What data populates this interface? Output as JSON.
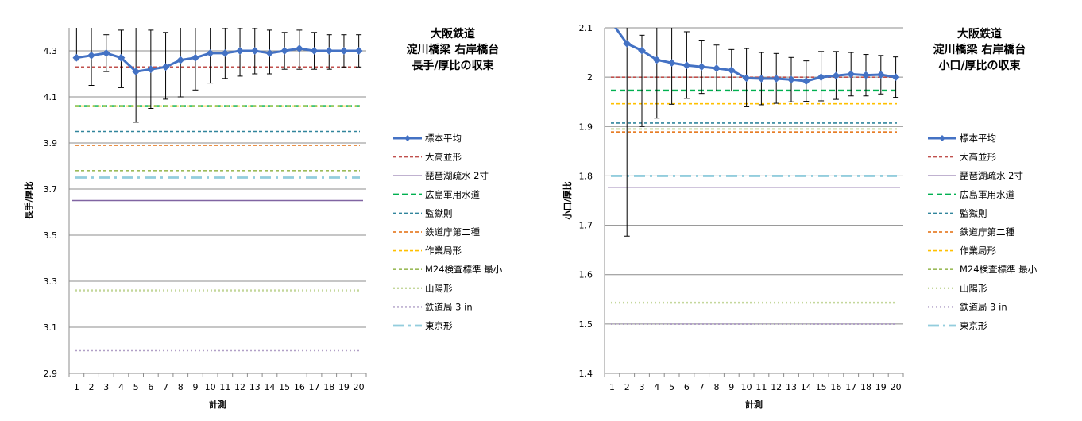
{
  "chart_data": [
    {
      "type": "line",
      "title": [
        "大阪鉄道",
        "淀川橋梁 右岸橋台",
        "長手/厚比の収束"
      ],
      "xlabel": "計測",
      "ylabel": "長手/厚比",
      "x": [
        1,
        2,
        3,
        4,
        5,
        6,
        7,
        8,
        9,
        10,
        11,
        12,
        13,
        14,
        15,
        16,
        17,
        18,
        19,
        20
      ],
      "ylim": [
        2.9,
        4.4
      ],
      "yticks": [
        2.9,
        3.1,
        3.3,
        3.5,
        3.7,
        3.9,
        4.1,
        4.3
      ],
      "ytick_labels": [
        "2.9",
        "3.1",
        "3.3",
        "3.5",
        "3.7",
        "3.9",
        "4.1",
        "4.3"
      ],
      "grid": true,
      "legend": "right",
      "sample": {
        "name": "標本平均",
        "color": "#4472C4",
        "values": [
          4.27,
          4.28,
          4.29,
          4.27,
          4.21,
          4.22,
          4.23,
          4.26,
          4.27,
          4.29,
          4.29,
          4.3,
          4.3,
          4.29,
          4.3,
          4.31,
          4.3,
          4.3,
          4.3,
          4.3
        ],
        "err_hi": [
          4.44,
          4.41,
          4.37,
          4.39,
          4.43,
          4.39,
          4.38,
          4.42,
          4.41,
          4.42,
          4.4,
          4.4,
          4.4,
          4.39,
          4.38,
          4.39,
          4.38,
          4.37,
          4.37,
          4.37
        ],
        "err_lo": [
          4.26,
          4.15,
          4.21,
          4.14,
          3.99,
          4.05,
          4.09,
          4.1,
          4.13,
          4.16,
          4.18,
          4.19,
          4.2,
          4.2,
          4.22,
          4.22,
          4.22,
          4.22,
          4.23,
          4.23
        ]
      },
      "references": [
        {
          "name": "大高並形",
          "value": 4.23,
          "color": "#C0504D",
          "style": "dash"
        },
        {
          "name": "琵琶湖疏水 2寸",
          "value": 3.65,
          "color": "#8064A2",
          "style": "solid"
        },
        {
          "name": "広島軍用水道",
          "value": 4.06,
          "color": "#00B050",
          "style": "dash-long"
        },
        {
          "name": "監獄則",
          "value": 3.95,
          "color": "#31859C",
          "style": "dash"
        },
        {
          "name": "鉄道庁第二種",
          "value": 3.89,
          "color": "#E46C0A",
          "style": "dash"
        },
        {
          "name": "作業局形",
          "value": 4.06,
          "color": "#FFC000",
          "style": "dash"
        },
        {
          "name": "M24検査標準 最小",
          "value": 3.78,
          "color": "#9BBB59",
          "style": "dash"
        },
        {
          "name": "山陽形",
          "value": 3.26,
          "color": "#C4D79B",
          "style": "dot"
        },
        {
          "name": "鉄道局 3 in",
          "value": 3.0,
          "color": "#B1A0C7",
          "style": "dot"
        },
        {
          "name": "東京形",
          "value": 3.75,
          "color": "#93CDDD",
          "style": "dashdot"
        }
      ]
    },
    {
      "type": "line",
      "title": [
        "大阪鉄道",
        "淀川橋梁 右岸橋台",
        "小口/厚比の収束"
      ],
      "xlabel": "計測",
      "ylabel": "小口/厚比",
      "x": [
        1,
        2,
        3,
        4,
        5,
        6,
        7,
        8,
        9,
        10,
        11,
        12,
        13,
        14,
        15,
        16,
        17,
        18,
        19,
        20
      ],
      "ylim": [
        1.4,
        2.1
      ],
      "yticks": [
        1.4,
        1.5,
        1.6,
        1.7,
        1.8,
        1.9,
        2.0,
        2.1
      ],
      "ytick_labels": [
        "1.4",
        "1.5",
        "1.6",
        "1.7",
        "1.8",
        "1.9",
        "2",
        "2.1"
      ],
      "grid": true,
      "legend": "right",
      "sample": {
        "name": "標本平均",
        "color": "#4472C4",
        "values": [
          2.11,
          2.068,
          2.054,
          2.035,
          2.029,
          2.024,
          2.021,
          2.018,
          2.014,
          1.998,
          1.997,
          1.997,
          1.995,
          1.992,
          2.0,
          2.003,
          2.006,
          2.004,
          2.005,
          2.0
        ],
        "err_hi": [
          2.11,
          2.11,
          2.085,
          2.11,
          2.11,
          2.092,
          2.075,
          2.065,
          2.056,
          2.058,
          2.05,
          2.048,
          2.04,
          2.033,
          2.052,
          2.052,
          2.05,
          2.046,
          2.044,
          2.041
        ],
        "err_lo": [
          2.11,
          1.678,
          1.9,
          1.917,
          1.945,
          1.957,
          1.967,
          1.972,
          1.972,
          1.94,
          1.944,
          1.947,
          1.95,
          1.951,
          1.952,
          1.955,
          1.962,
          1.962,
          1.966,
          1.959
        ]
      },
      "references": [
        {
          "name": "大高並形",
          "value": 2.0,
          "color": "#C0504D",
          "style": "dash"
        },
        {
          "name": "琵琶湖疏水 2寸",
          "value": 1.777,
          "color": "#8064A2",
          "style": "solid"
        },
        {
          "name": "広島軍用水道",
          "value": 1.973,
          "color": "#00B050",
          "style": "dash-long"
        },
        {
          "name": "監獄則",
          "value": 1.907,
          "color": "#31859C",
          "style": "dash"
        },
        {
          "name": "鉄道庁第二種",
          "value": 1.889,
          "color": "#E46C0A",
          "style": "dash"
        },
        {
          "name": "作業局形",
          "value": 1.946,
          "color": "#FFC000",
          "style": "dash"
        },
        {
          "name": "M24検査標準 最小",
          "value": 1.895,
          "color": "#9BBB59",
          "style": "dash"
        },
        {
          "name": "山陽形",
          "value": 1.543,
          "color": "#C4D79B",
          "style": "dot"
        },
        {
          "name": "鉄道局 3 in",
          "value": 1.5,
          "color": "#B1A0C7",
          "style": "dot"
        },
        {
          "name": "東京形",
          "value": 1.8,
          "color": "#93CDDD",
          "style": "dashdot"
        }
      ]
    }
  ]
}
